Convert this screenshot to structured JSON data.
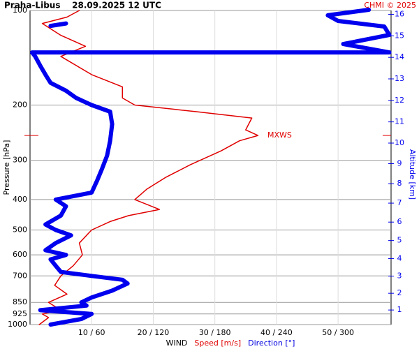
{
  "chart_data": {
    "type": "line",
    "title": "Praha-Libus    28.09.2025 12 UTC",
    "credit": "CHMI © 2025",
    "ylabel": "Pressure [hPa]",
    "y2label": "Altitude [km]",
    "xlabel_parts": [
      {
        "text": "WIND",
        "color": "#000000"
      },
      {
        "text": "Speed [m/s]",
        "color": "#e00000"
      },
      {
        "text": "Direction [°]",
        "color": "#0000e0"
      }
    ],
    "y_scale": "log",
    "ylim": [
      1000,
      100
    ],
    "yticks": [
      100,
      200,
      300,
      400,
      500,
      600,
      700,
      850,
      925,
      1000
    ],
    "xlim": [
      0,
      58.6
    ],
    "x2lim": [
      0,
      351.6
    ],
    "xticks": [
      {
        "value": 10,
        "label": "10 / 60"
      },
      {
        "value": 20,
        "label": "20 / 120"
      },
      {
        "value": 30,
        "label": "30 / 180"
      },
      {
        "value": 40,
        "label": "40 / 240"
      },
      {
        "value": 50,
        "label": "50 / 300"
      }
    ],
    "y2ticks": [
      1,
      2,
      3,
      4,
      5,
      6,
      7,
      8,
      9,
      10,
      11,
      12,
      13,
      14,
      15,
      16
    ],
    "grid": true,
    "annotation": {
      "text": "MXWS",
      "pressure": 250
    },
    "series": [
      {
        "name": "Speed [m/s]",
        "color": "#e00000",
        "axis": "x",
        "pressure": [
          1000,
          950,
          925,
          900,
          850,
          800,
          750,
          700,
          650,
          600,
          550,
          500,
          470,
          450,
          430,
          400,
          370,
          340,
          310,
          280,
          260,
          250,
          240,
          220,
          210,
          200,
          190,
          175,
          160,
          140,
          130,
          120,
          110,
          105,
          100
        ],
        "values": [
          1.5,
          3,
          2,
          5,
          3,
          6,
          4,
          5,
          7,
          8.5,
          8,
          10,
          13,
          16,
          21,
          17,
          19,
          22,
          26,
          31,
          34,
          37,
          35,
          36,
          27,
          17,
          15,
          15,
          10,
          5,
          9,
          5,
          2,
          6,
          8
        ]
      },
      {
        "name": "Direction [°]",
        "color": "#0000ee",
        "axis": "x2",
        "pressure": [
          1000,
          960,
          925,
          900,
          870,
          850,
          820,
          780,
          740,
          720,
          700,
          680,
          650,
          620,
          600,
          580,
          550,
          520,
          500,
          480,
          450,
          420,
          400,
          380,
          350,
          320,
          290,
          260,
          230,
          210,
          200,
          190,
          180,
          170,
          160,
          150,
          140,
          136,
          136,
          127.9,
          119.6,
          112.5,
          108,
          103.6,
          99.5,
          112.5,
          112,
          110
        ],
        "values": [
          20,
          50,
          60,
          10,
          55,
          50,
          60,
          80,
          95,
          90,
          60,
          30,
          25,
          20,
          35,
          15,
          25,
          40,
          25,
          15,
          30,
          35,
          25,
          60,
          65,
          70,
          75,
          78,
          80,
          78,
          60,
          45,
          35,
          20,
          15,
          10,
          5,
          2,
          350,
          305,
          350,
          345,
          300,
          290,
          330,
          null,
          20,
          35
        ]
      }
    ]
  }
}
